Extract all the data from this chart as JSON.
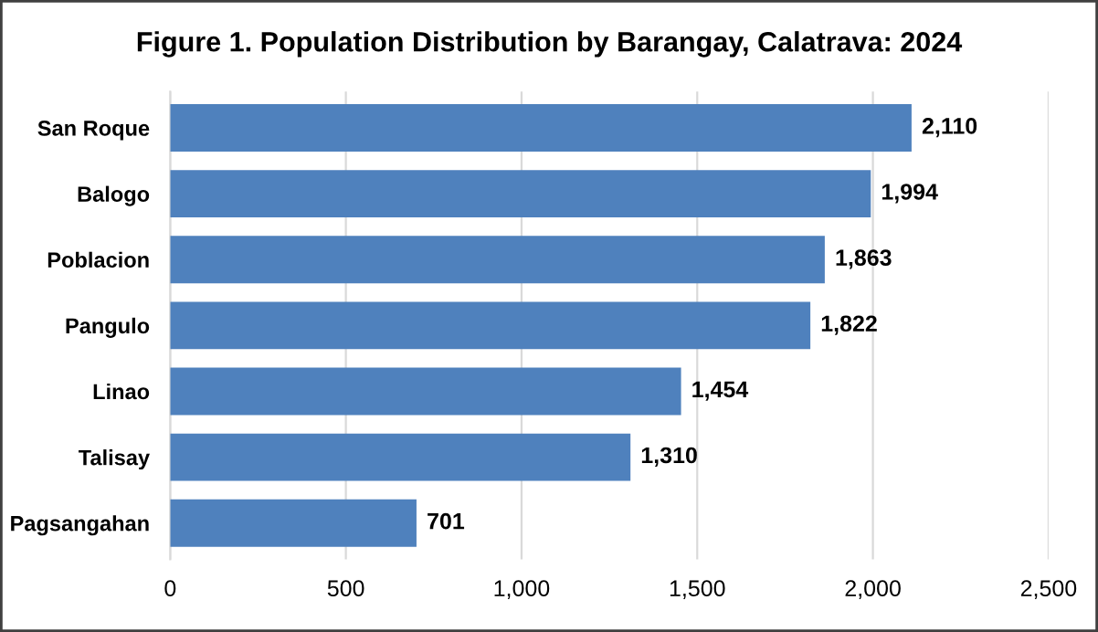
{
  "chart_data": {
    "type": "bar",
    "orientation": "horizontal",
    "title": "Figure 1. Population Distribution by Barangay, Calatrava: 2024",
    "categories": [
      "San Roque",
      "Balogo",
      "Poblacion",
      "Pangulo",
      "Linao",
      "Talisay",
      "Pagsangahan"
    ],
    "values": [
      2110,
      1994,
      1863,
      1822,
      1454,
      1310,
      701
    ],
    "value_labels": [
      "2,110",
      "1,994",
      "1,863",
      "1,822",
      "1,454",
      "1,310",
      "701"
    ],
    "color": "#4f81bd",
    "xlim": [
      0,
      2500
    ],
    "xticks": [
      0,
      500,
      {
        "value": 1000,
        "label": "1,000"
      },
      {
        "value": 1500,
        "label": "1,500"
      },
      {
        "value": 2000,
        "label": "2,000"
      },
      {
        "value": 2500,
        "label": "2,500"
      }
    ],
    "grid": "x",
    "legend": false
  }
}
